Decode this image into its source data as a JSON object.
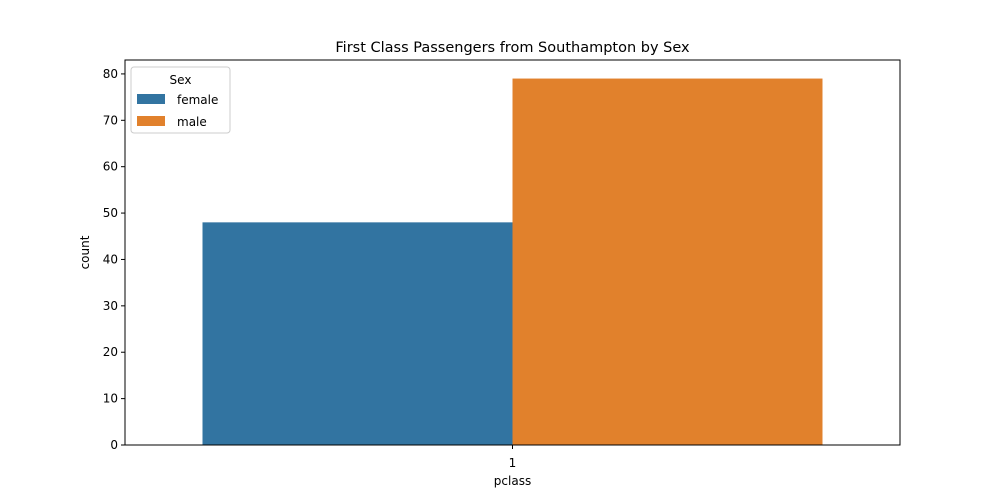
{
  "chart_data": {
    "type": "bar",
    "title": "First Class Passengers from Southampton by Sex",
    "xlabel": "pclass",
    "ylabel": "count",
    "categories": [
      "1"
    ],
    "ylim": [
      0,
      83
    ],
    "yticks": [
      0,
      10,
      20,
      30,
      40,
      50,
      60,
      70,
      80
    ],
    "grid": false,
    "legend": {
      "title": "Sex",
      "placement": "top-left"
    },
    "series": [
      {
        "name": "female",
        "color": "#3274a1",
        "values": [
          48
        ]
      },
      {
        "name": "male",
        "color": "#e1812c",
        "values": [
          79
        ]
      }
    ]
  }
}
